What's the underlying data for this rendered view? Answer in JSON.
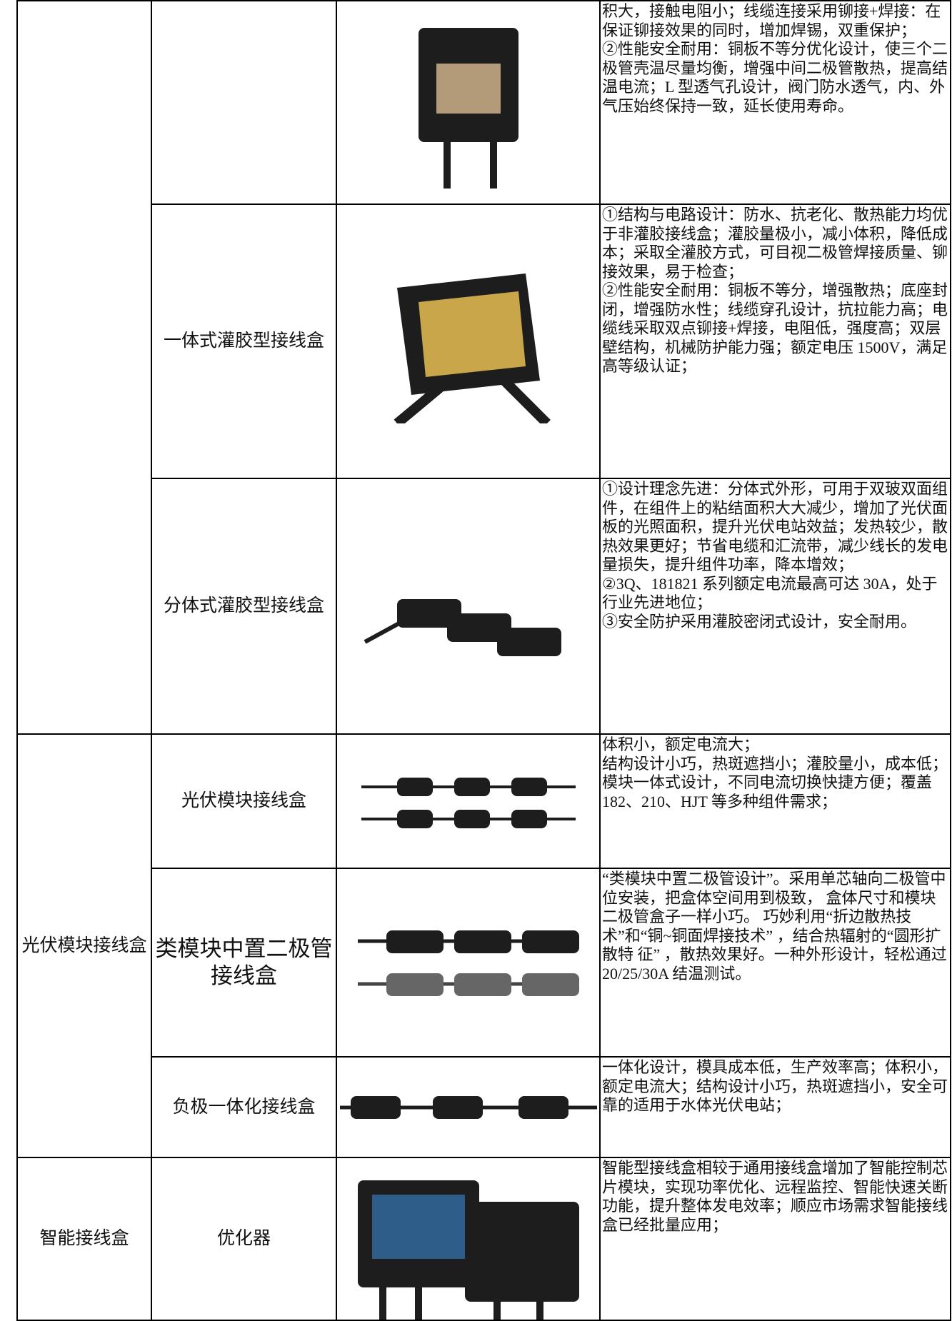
{
  "table": {
    "rows": [
      {
        "category": "",
        "name": "",
        "description": [
          "积大，接触电阻小；线缆连接采用铆接+焊接：在保证铆接效果的同时，增加焊锡，双重保护；",
          "②性能安全耐用：铜板不等分优化设计，使三个二极管壳温尽量均衡，增强中间二极管散热，提高结温电流；L 型透气孔设计，阀门防水透气，内、外气压始终保持一致，延长使用寿命。"
        ]
      },
      {
        "name": "一体式灌胶型接线盒",
        "description": [
          "①结构与电路设计：防水、抗老化、散热能力均优于非灌胶接线盒；灌胶量极小，减小体积，降低成本；采取全灌胶方式，可目视二极管焊接质量、铆接效果，易于检查；",
          "②性能安全耐用：铜板不等分，增强散热；底座封闭，增强防水性；线缆穿孔设计，抗拉能力高；电缆线采取双点铆接+焊接，电阻低，强度高；双层壁结构，机械防护能力强；额定电压 1500V，满足高等级认证；"
        ]
      },
      {
        "name": "分体式灌胶型接线盒",
        "description": [
          "①设计理念先进：分体式外形，可用于双玻双面组件，在组件上的粘结面积大大减少，增加了光伏面板的光照面积，提升光伏电站效益；发热较少，散热效果更好；节省电缆和汇流带，减少线长的发电量损失，提升组件功率，降本增效；",
          "②3Q、181821 系列额定电流最高可达 30A，处于行业先进地位；",
          "③安全防护采用灌胶密闭式设计，安全耐用。"
        ]
      },
      {
        "category": "光伏模块接线盒",
        "name": "光伏模块接线盒",
        "description": [
          "体积小，额定电流大；",
          "结构设计小巧，热斑遮挡小；灌胶量小，成本低；模块一体式设计，不同电流切换快捷方便；覆盖 182、210、HJT 等多种组件需求；"
        ]
      },
      {
        "name": "类模块中置二极管接线盒",
        "description": [
          "“类模块中置二极管设计”。采用单芯轴向二极管中位安装，把盒体空间用到极致， 盒体尺寸和模块二极管盒子一样小巧。 巧妙利用“折边散热技术”和“铜~铜面焊接技术” ，结合热辐射的“圆形扩散特 征” ，散热效果好。一种外形设计，轻松通过 20/25/30A 结温测试。"
        ]
      },
      {
        "name": "负极一体化接线盒",
        "description": [
          "一体化设计，模具成本低，生产效率高；体积小，额定电流大；结构设计小巧，热斑遮挡小，安全可靠的适用于水体光伏电站；"
        ]
      },
      {
        "category": "智能接线盒",
        "name": "优化器",
        "description": [
          "智能型接线盒相较于通用接线盒增加了智能控制芯片模块，实现功率优化、远程监控、智能快速关断功能，提升整体发电效率；顺应市场需求智能接线盒已经批量应用；"
        ]
      }
    ]
  }
}
